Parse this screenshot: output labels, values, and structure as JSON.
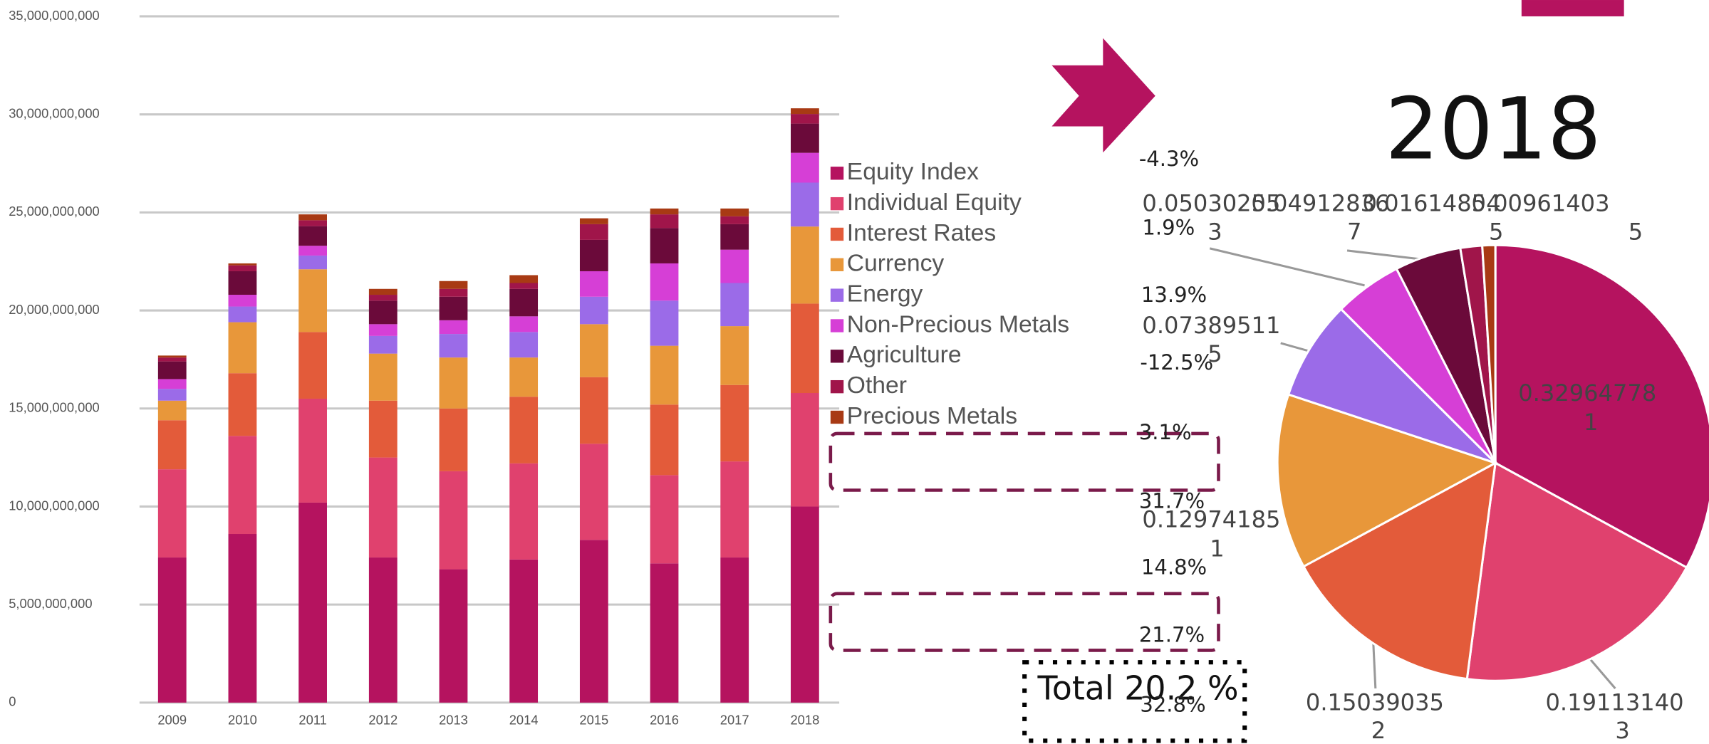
{
  "chart_data": [
    {
      "type": "bar",
      "categories": [
        "2009",
        "2010",
        "2011",
        "2012",
        "2013",
        "2014",
        "2015",
        "2016",
        "2017",
        "2018"
      ],
      "series": [
        {
          "name": "Equity Index",
          "color": "#b5135f",
          "values": [
            7400000000.0,
            8600000000.0,
            10200000000.0,
            7400000000.0,
            6800000000.0,
            7300000000.0,
            8300000000.0,
            7100000000.0,
            7400000000.0,
            10000000000.0
          ]
        },
        {
          "name": "Individual Equity",
          "color": "#e0416e",
          "values": [
            4500000000.0,
            5000000000.0,
            5300000000.0,
            5100000000.0,
            5000000000.0,
            4900000000.0,
            4900000000.0,
            4500000000.0,
            4900000000.0,
            5790000000.0
          ]
        },
        {
          "name": "Interest Rates",
          "color": "#e35b3a",
          "values": [
            2500000000.0,
            3200000000.0,
            3400000000.0,
            2900000000.0,
            3200000000.0,
            3400000000.0,
            3400000000.0,
            3600000000.0,
            3900000000.0,
            4560000000.0
          ]
        },
        {
          "name": "Currency",
          "color": "#e8973a",
          "values": [
            1000000000.0,
            2600000000.0,
            3200000000.0,
            2400000000.0,
            2600000000.0,
            2000000000.0,
            2700000000.0,
            3000000000.0,
            3000000000.0,
            3930000000.0
          ]
        },
        {
          "name": "Energy",
          "color": "#9b6be8",
          "values": [
            600000000.0,
            800000000.0,
            700000000.0,
            900000000.0,
            1200000000.0,
            1300000000.0,
            1400000000.0,
            2300000000.0,
            2200000000.0,
            2240000000.0
          ]
        },
        {
          "name": "Non-Precious Metals",
          "color": "#d63fd6",
          "values": [
            500000000.0,
            600000000.0,
            500000000.0,
            600000000.0,
            700000000.0,
            800000000.0,
            1300000000.0,
            1900000000.0,
            1700000000.0,
            1520000000.0
          ]
        },
        {
          "name": "Agriculture",
          "color": "#6b0a3a",
          "values": [
            900000000.0,
            1200000000.0,
            1000000000.0,
            1200000000.0,
            1200000000.0,
            1400000000.0,
            1600000000.0,
            1800000000.0,
            1300000000.0,
            1490000000.0
          ]
        },
        {
          "name": "Other",
          "color": "#a0154a",
          "values": [
            200000000.0,
            300000000.0,
            300000000.0,
            300000000.0,
            400000000.0,
            300000000.0,
            800000000.0,
            700000000.0,
            400000000.0,
            490000000.0
          ]
        },
        {
          "name": "Precious Metals",
          "color": "#a83a14",
          "values": [
            100000000.0,
            100000000.0,
            300000000.0,
            300000000.0,
            400000000.0,
            400000000.0,
            300000000.0,
            300000000.0,
            400000000.0,
            290000000.0
          ]
        }
      ],
      "ylim": [
        0,
        35000000000
      ],
      "yticks": [
        0,
        {
          "value": 5000000000,
          "label": "5,000,000,000"
        },
        {
          "value": 10000000000,
          "label": "10,000,000,000"
        },
        {
          "value": 15000000000,
          "label": "15,000,000,000"
        },
        {
          "value": 20000000000,
          "label": "20,000,000,000"
        },
        {
          "value": 25000000000,
          "label": "25,000,000,000"
        },
        {
          "value": 30000000000,
          "label": "30,000,000,000"
        },
        {
          "value": 35000000000,
          "label": "35,000,000,000"
        }
      ],
      "grid": true,
      "legend": "right"
    },
    {
      "type": "pie",
      "title": "2018",
      "values": [
        0.329647781,
        0.191131403,
        0.150390352,
        0.129741851,
        0.073895115,
        0.050302553,
        0.049128367,
        0.016148545,
        0.009614035
      ],
      "value_labels": [
        "0.32964778\n1",
        "0.19113140\n3",
        "0.15039035\n2",
        "0.12974185\n1",
        "0.07389511\n5",
        "0.05030255\n3",
        "0.04912836\n7",
        "0.01614854\n5",
        "0.00961403\n5"
      ],
      "colors": [
        "#b5135f",
        "#e0416e",
        "#e35b3a",
        "#e8973a",
        "#9b6be8",
        "#d63fd6",
        "#6b0a3a",
        "#a0154a",
        "#a83a14"
      ]
    }
  ],
  "annotations": [
    "-4.3%",
    "1.9%",
    "13.9%",
    "-12.5%",
    "3.1%",
    "31.7%",
    "14.8%",
    "21.7%",
    "32.8%"
  ],
  "total": "Total 20.2 %"
}
